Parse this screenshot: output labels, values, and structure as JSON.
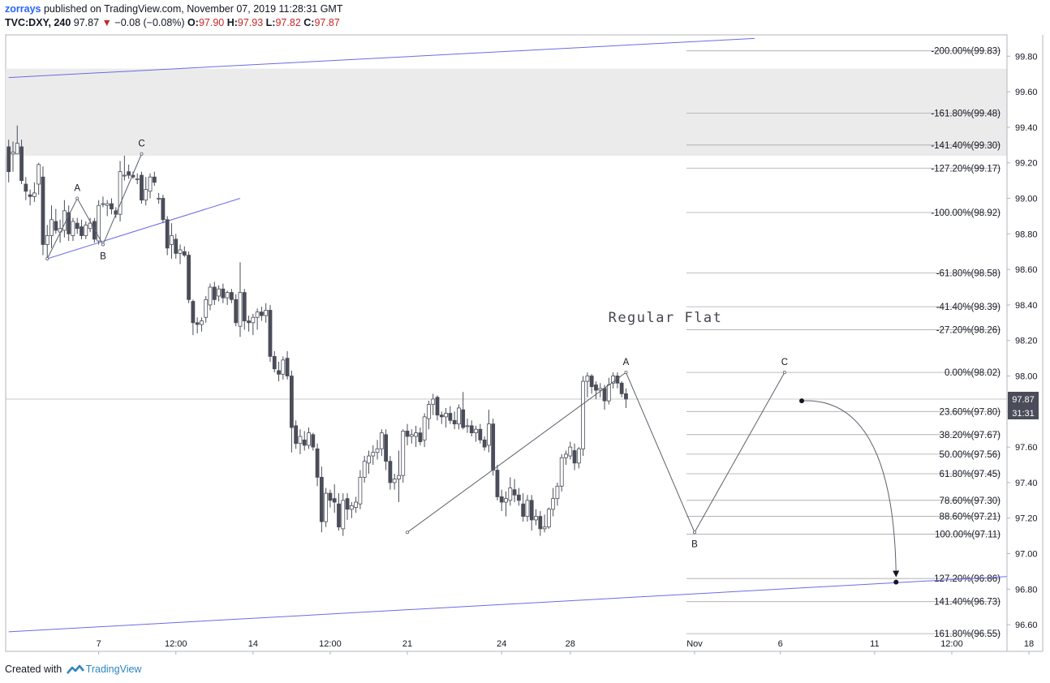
{
  "header": {
    "author": "zorrays",
    "published_text": " published on TradingView.com, November 07, 2019 11:28:31 GMT",
    "symbol": "TVC:DXY, 240",
    "last": "97.87",
    "change": "−0.08 (−0.08%)",
    "open_label": "O:",
    "open": "97.90",
    "high_label": "H:",
    "high": "97.93",
    "low_label": "L:",
    "low": "97.82",
    "close_label": "C:",
    "close": "97.87"
  },
  "footer": {
    "created_with": "Created with",
    "brand": "TradingView"
  },
  "colors": {
    "up": "#ffffff",
    "down": "#4a4d59",
    "wick": "#4a4d59",
    "trend": "#6a6ae8",
    "zone": "#ebebeb",
    "price_tag": "#4a4d59"
  },
  "chart_data": {
    "type": "candlestick",
    "symbol": "TVC:DXY",
    "interval": "240",
    "ylim": [
      96.45,
      99.92
    ],
    "y_ticks": [
      "99.80",
      "99.60",
      "99.40",
      "99.20",
      "99.00",
      "98.80",
      "98.60",
      "98.40",
      "98.20",
      "98.00",
      "97.80",
      "97.60",
      "97.40",
      "97.20",
      "97.00",
      "96.80",
      "96.60"
    ],
    "x_ticks": [
      {
        "label": "7",
        "bar": 21
      },
      {
        "label": "12:00",
        "bar": 39
      },
      {
        "label": "14",
        "bar": 57
      },
      {
        "label": "12:00",
        "bar": 75
      },
      {
        "label": "21",
        "bar": 93
      },
      {
        "label": "24",
        "bar": 115
      },
      {
        "label": "28",
        "bar": 131
      },
      {
        "label": "Nov",
        "bar": 160
      },
      {
        "label": "6",
        "bar": 180
      },
      {
        "label": "11",
        "bar": 202
      },
      {
        "label": "12:00",
        "bar": 220
      },
      {
        "label": "18",
        "bar": 238
      }
    ],
    "candles_ohlc": [
      [
        99.29,
        99.33,
        99.09,
        99.15
      ],
      [
        99.25,
        99.32,
        99.15,
        99.26
      ],
      [
        99.25,
        99.41,
        99.25,
        99.31
      ],
      [
        99.29,
        99.33,
        99.08,
        99.1
      ],
      [
        99.08,
        99.12,
        98.99,
        99.04
      ],
      [
        99.02,
        99.05,
        98.96,
        99.01
      ],
      [
        99.01,
        99.09,
        98.98,
        99.03
      ],
      [
        99.08,
        99.2,
        99.02,
        99.19
      ],
      [
        99.12,
        99.18,
        98.68,
        98.74
      ],
      [
        98.74,
        98.85,
        98.66,
        98.79
      ],
      [
        98.79,
        98.96,
        98.72,
        98.88
      ],
      [
        98.87,
        98.94,
        98.8,
        98.82
      ],
      [
        98.81,
        98.88,
        98.75,
        98.83
      ],
      [
        98.82,
        98.99,
        98.78,
        98.93
      ],
      [
        98.92,
        98.96,
        98.76,
        98.8
      ],
      [
        98.79,
        98.89,
        98.76,
        98.87
      ],
      [
        98.86,
        98.89,
        98.8,
        98.83
      ],
      [
        98.84,
        98.88,
        98.77,
        98.79
      ],
      [
        98.79,
        98.87,
        98.77,
        98.85
      ],
      [
        98.83,
        98.89,
        98.81,
        98.86
      ],
      [
        98.87,
        98.89,
        98.75,
        98.77
      ],
      [
        98.76,
        98.99,
        98.74,
        98.96
      ],
      [
        98.97,
        99.01,
        98.95,
        98.97
      ],
      [
        98.96,
        98.99,
        98.9,
        98.97
      ],
      [
        98.97,
        99.0,
        98.91,
        98.94
      ],
      [
        98.93,
        98.95,
        98.89,
        98.91
      ],
      [
        98.91,
        99.21,
        98.87,
        99.15
      ],
      [
        99.13,
        99.24,
        99.1,
        99.13
      ],
      [
        99.15,
        99.19,
        99.11,
        99.13
      ],
      [
        99.13,
        99.15,
        99.11,
        99.12
      ],
      [
        99.11,
        99.14,
        99.08,
        99.11
      ],
      [
        99.13,
        99.15,
        98.97,
        98.99
      ],
      [
        98.99,
        99.12,
        98.96,
        99.05
      ],
      [
        99.04,
        99.14,
        99.0,
        99.12
      ],
      [
        99.12,
        99.15,
        99.07,
        99.09
      ],
      [
        99.0,
        99.03,
        98.97,
        99.0
      ],
      [
        99.0,
        99.02,
        98.86,
        98.88
      ],
      [
        98.88,
        98.9,
        98.68,
        98.72
      ],
      [
        98.74,
        98.86,
        98.66,
        98.79
      ],
      [
        98.77,
        98.8,
        98.66,
        98.69
      ],
      [
        98.69,
        98.74,
        98.63,
        98.71
      ],
      [
        98.7,
        98.73,
        98.67,
        98.68
      ],
      [
        98.68,
        98.7,
        98.41,
        98.43
      ],
      [
        98.42,
        98.43,
        98.23,
        98.3
      ],
      [
        98.3,
        98.33,
        98.24,
        98.29
      ],
      [
        98.29,
        98.33,
        98.25,
        98.31
      ],
      [
        98.33,
        98.45,
        98.3,
        98.43
      ],
      [
        98.4,
        98.52,
        98.37,
        98.5
      ],
      [
        98.5,
        98.53,
        98.4,
        98.43
      ],
      [
        98.45,
        98.51,
        98.42,
        98.49
      ],
      [
        98.49,
        98.52,
        98.41,
        98.44
      ],
      [
        98.44,
        98.48,
        98.4,
        98.47
      ],
      [
        98.47,
        98.49,
        98.41,
        98.43
      ],
      [
        98.43,
        98.46,
        98.28,
        98.3
      ],
      [
        98.28,
        98.64,
        98.22,
        98.47
      ],
      [
        98.47,
        98.49,
        98.26,
        98.31
      ],
      [
        98.31,
        98.34,
        98.25,
        98.3
      ],
      [
        98.3,
        98.35,
        98.23,
        98.33
      ],
      [
        98.33,
        98.38,
        98.26,
        98.36
      ],
      [
        98.36,
        98.39,
        98.31,
        98.34
      ],
      [
        98.34,
        98.41,
        98.3,
        98.37
      ],
      [
        98.37,
        98.4,
        98.08,
        98.11
      ],
      [
        98.11,
        98.14,
        98.02,
        98.04
      ],
      [
        98.03,
        98.08,
        97.97,
        98.01
      ],
      [
        98.01,
        98.11,
        97.98,
        98.09
      ],
      [
        98.1,
        98.14,
        97.98,
        98.0
      ],
      [
        98.0,
        98.03,
        97.57,
        97.71
      ],
      [
        97.72,
        97.75,
        97.59,
        97.62
      ],
      [
        97.62,
        97.7,
        97.56,
        97.66
      ],
      [
        97.64,
        97.69,
        97.58,
        97.61
      ],
      [
        97.61,
        97.71,
        97.59,
        97.68
      ],
      [
        97.67,
        97.68,
        97.58,
        97.6
      ],
      [
        97.59,
        97.62,
        97.38,
        97.43
      ],
      [
        97.43,
        97.49,
        97.12,
        97.18
      ],
      [
        97.18,
        97.37,
        97.15,
        97.34
      ],
      [
        97.34,
        97.36,
        97.26,
        97.3
      ],
      [
        97.31,
        97.39,
        97.23,
        97.29
      ],
      [
        97.28,
        97.34,
        97.13,
        97.15
      ],
      [
        97.14,
        97.34,
        97.1,
        97.3
      ],
      [
        97.31,
        97.34,
        97.19,
        97.25
      ],
      [
        97.25,
        97.29,
        97.2,
        97.27
      ],
      [
        97.26,
        97.32,
        97.23,
        97.29
      ],
      [
        97.28,
        97.47,
        97.25,
        97.43
      ],
      [
        97.43,
        97.55,
        97.4,
        97.52
      ],
      [
        97.51,
        97.58,
        97.45,
        97.55
      ],
      [
        97.55,
        97.61,
        97.5,
        97.57
      ],
      [
        97.57,
        97.64,
        97.53,
        97.59
      ],
      [
        97.59,
        97.7,
        97.55,
        97.68
      ],
      [
        97.67,
        97.7,
        97.47,
        97.52
      ],
      [
        97.52,
        97.55,
        97.36,
        97.4
      ],
      [
        97.4,
        97.45,
        97.36,
        97.42
      ],
      [
        97.42,
        97.58,
        97.29,
        97.44
      ],
      [
        97.44,
        97.7,
        97.4,
        97.69
      ],
      [
        97.69,
        97.73,
        97.61,
        97.66
      ],
      [
        97.66,
        97.7,
        97.62,
        97.67
      ],
      [
        97.66,
        97.72,
        97.6,
        97.68
      ],
      [
        97.68,
        97.71,
        97.61,
        97.63
      ],
      [
        97.64,
        97.79,
        97.6,
        97.77
      ],
      [
        97.76,
        97.86,
        97.7,
        97.84
      ],
      [
        97.84,
        97.9,
        97.78,
        97.87
      ],
      [
        97.88,
        97.89,
        97.75,
        97.78
      ],
      [
        97.78,
        97.8,
        97.73,
        97.77
      ],
      [
        97.77,
        97.82,
        97.71,
        97.79
      ],
      [
        97.79,
        97.83,
        97.73,
        97.75
      ],
      [
        97.75,
        97.8,
        97.7,
        97.73
      ],
      [
        97.73,
        97.84,
        97.7,
        97.82
      ],
      [
        97.81,
        97.91,
        97.7,
        97.71
      ],
      [
        97.72,
        97.76,
        97.68,
        97.72
      ],
      [
        97.72,
        97.75,
        97.66,
        97.68
      ],
      [
        97.68,
        97.72,
        97.63,
        97.7
      ],
      [
        97.7,
        97.73,
        97.62,
        97.64
      ],
      [
        97.64,
        97.66,
        97.58,
        97.6
      ],
      [
        97.61,
        97.81,
        97.57,
        97.73
      ],
      [
        97.73,
        97.76,
        97.44,
        97.47
      ],
      [
        97.47,
        97.5,
        97.3,
        97.32
      ],
      [
        97.32,
        97.36,
        97.24,
        97.29
      ],
      [
        97.29,
        97.35,
        97.21,
        97.31
      ],
      [
        97.3,
        97.43,
        97.27,
        97.37
      ],
      [
        97.36,
        97.42,
        97.29,
        97.33
      ],
      [
        97.33,
        97.37,
        97.27,
        97.3
      ],
      [
        97.28,
        97.34,
        97.18,
        97.21
      ],
      [
        97.21,
        97.33,
        97.18,
        97.3
      ],
      [
        97.3,
        97.33,
        97.13,
        97.19
      ],
      [
        97.19,
        97.25,
        97.16,
        97.21
      ],
      [
        97.21,
        97.24,
        97.1,
        97.14
      ],
      [
        97.14,
        97.22,
        97.12,
        97.15
      ],
      [
        97.15,
        97.26,
        97.14,
        97.25
      ],
      [
        97.25,
        97.37,
        97.21,
        97.31
      ],
      [
        97.31,
        97.4,
        97.27,
        97.38
      ],
      [
        97.38,
        97.56,
        97.35,
        97.54
      ],
      [
        97.54,
        97.58,
        97.5,
        97.56
      ],
      [
        97.55,
        97.63,
        97.53,
        97.6
      ],
      [
        97.58,
        97.62,
        97.47,
        97.51
      ],
      [
        97.51,
        97.6,
        97.48,
        97.59
      ],
      [
        97.59,
        98.0,
        97.55,
        97.97
      ],
      [
        97.97,
        98.02,
        97.88,
        98.0
      ],
      [
        98.0,
        98.01,
        97.9,
        97.94
      ],
      [
        97.95,
        97.97,
        97.87,
        97.92
      ],
      [
        97.92,
        97.96,
        97.88,
        97.93
      ],
      [
        97.93,
        97.95,
        97.81,
        97.86
      ],
      [
        97.86,
        97.99,
        97.84,
        97.95
      ],
      [
        97.96,
        98.02,
        97.93,
        98.0
      ],
      [
        98.0,
        98.02,
        97.93,
        97.96
      ],
      [
        97.96,
        97.97,
        97.88,
        97.9
      ],
      [
        97.9,
        97.93,
        97.82,
        97.87
      ]
    ],
    "fib_levels": [
      {
        "label": "-200.00%(99.83)",
        "value": 99.83
      },
      {
        "label": "-161.80%(99.48)",
        "value": 99.48
      },
      {
        "label": "-141.40%(99.30)",
        "value": 99.3
      },
      {
        "label": "-127.20%(99.17)",
        "value": 99.17
      },
      {
        "label": "-100.00%(98.92)",
        "value": 98.92
      },
      {
        "label": "-61.80%(98.58)",
        "value": 98.58
      },
      {
        "label": "-41.40%(98.39)",
        "value": 98.39
      },
      {
        "label": "-27.20%(98.26)",
        "value": 98.26
      },
      {
        "label": "0.00%(98.02)",
        "value": 98.02
      },
      {
        "label": "23.60%(97.80)",
        "value": 97.8
      },
      {
        "label": "38.20%(97.67)",
        "value": 97.67
      },
      {
        "label": "50.00%(97.56)",
        "value": 97.56
      },
      {
        "label": "61.80%(97.45)",
        "value": 97.45
      },
      {
        "label": "78.60%(97.30)",
        "value": 97.3
      },
      {
        "label": "88.60%(97.21)",
        "value": 97.21
      },
      {
        "label": "100.00%(97.11)",
        "value": 97.11
      },
      {
        "label": "127.20%(96.86)",
        "value": 96.86
      },
      {
        "label": "141.40%(96.73)",
        "value": 96.73
      },
      {
        "label": "161.80%(96.55)",
        "value": 96.55
      }
    ],
    "resistance_zone": [
      99.24,
      99.73
    ],
    "trendlines": [
      {
        "from": [
          0,
          99.68
        ],
        "to": [
          174,
          99.9
        ]
      },
      {
        "from": [
          0,
          96.56
        ],
        "to": [
          247,
          96.89
        ]
      },
      {
        "from": [
          9,
          98.66
        ],
        "to": [
          54,
          99.0
        ]
      }
    ],
    "wave_paths": [
      {
        "points": [
          [
            9,
            98.66
          ],
          [
            16,
            99.0
          ],
          [
            22,
            98.74
          ],
          [
            31,
            99.25
          ]
        ],
        "labels": [
          "",
          "A",
          "B",
          "C"
        ]
      },
      {
        "points": [
          [
            93,
            97.12
          ],
          [
            144,
            98.02
          ],
          [
            160,
            97.12
          ],
          [
            181,
            98.02
          ]
        ],
        "labels": [
          "",
          "A",
          "B",
          "C"
        ]
      }
    ],
    "annotation": "Regular Flat",
    "projection": {
      "from": [
        185,
        97.86
      ],
      "to": [
        207,
        96.84
      ]
    },
    "price_tag": {
      "value": "97.87",
      "countdown": "31:31"
    }
  }
}
